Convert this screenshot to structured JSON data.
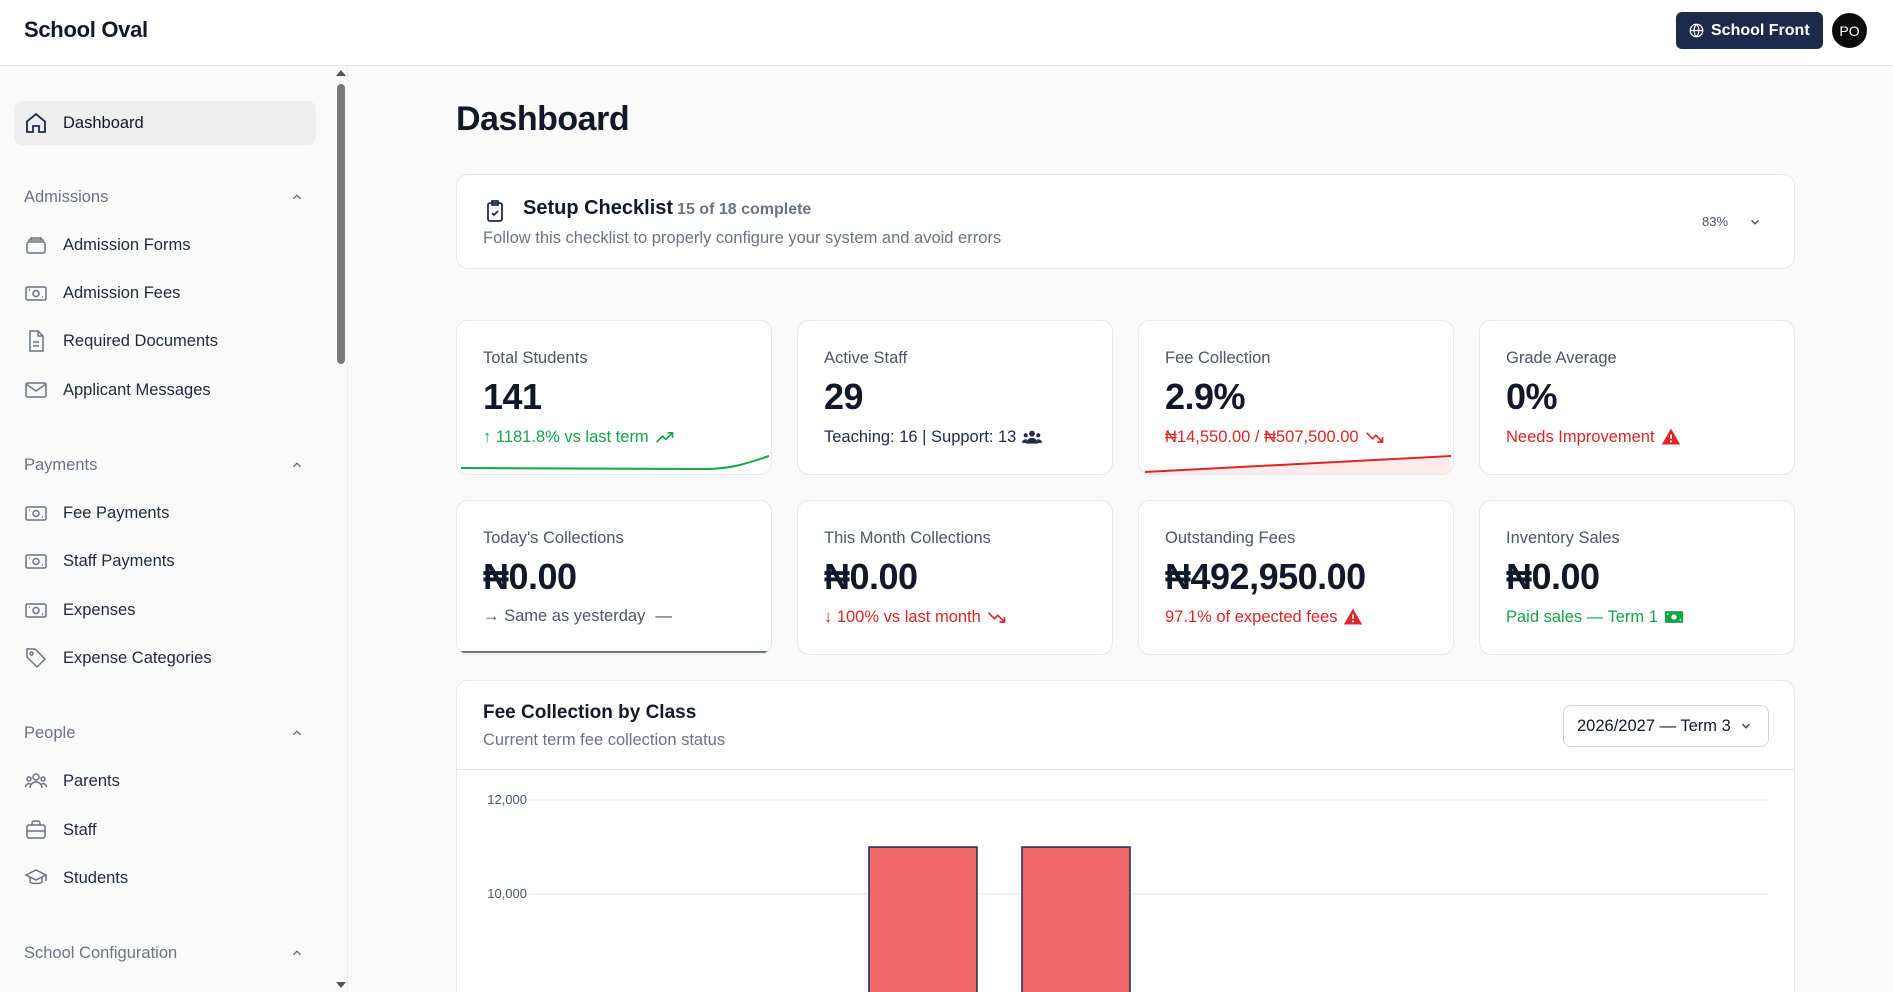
{
  "header": {
    "brand": "School Oval",
    "front_button": "School Front",
    "avatar_initials": "PO"
  },
  "sidebar": {
    "dashboard": "Dashboard",
    "groups": {
      "admissions": {
        "label": "Admissions",
        "items": [
          "Admission Forms",
          "Admission Fees",
          "Required Documents",
          "Applicant Messages"
        ]
      },
      "payments": {
        "label": "Payments",
        "items": [
          "Fee Payments",
          "Staff Payments",
          "Expenses",
          "Expense Categories"
        ]
      },
      "people": {
        "label": "People",
        "items": [
          "Parents",
          "Staff",
          "Students"
        ]
      },
      "config": {
        "label": "School Configuration"
      }
    }
  },
  "main": {
    "title": "Dashboard",
    "checklist": {
      "title": "Setup Checklist",
      "count": "15 of 18 complete",
      "subtitle": "Follow this checklist to properly configure your system and avoid errors",
      "percent": "83%"
    },
    "stats": [
      {
        "label": "Total Students",
        "value": "141",
        "sub": "↑ 1181.8% vs last term"
      },
      {
        "label": "Active Staff",
        "value": "29",
        "sub": "Teaching: 16 | Support: 13"
      },
      {
        "label": "Fee Collection",
        "value": "2.9%",
        "sub": "₦14,550.00 / ₦507,500.00"
      },
      {
        "label": "Grade Average",
        "value": "0%",
        "sub": "Needs Improvement"
      },
      {
        "label": "Today's Collections",
        "value": "₦0.00",
        "sub": "→ Same as yesterday",
        "sub_dash": "—"
      },
      {
        "label": "This Month Collections",
        "value": "₦0.00",
        "sub": "↓ 100% vs last month"
      },
      {
        "label": "Outstanding Fees",
        "value": "₦492,950.00",
        "sub": "97.1% of expected fees"
      },
      {
        "label": "Inventory Sales",
        "value": "₦0.00",
        "sub": "Paid sales — Term 1"
      }
    ],
    "fee_chart": {
      "title": "Fee Collection by Class",
      "subtitle": "Current term fee collection status",
      "term": "2026/2027 — Term 3"
    }
  },
  "colors": {
    "accent": "#1e2a4a",
    "positive": "#16a34a",
    "negative": "#dc2626",
    "bar_fill": "#f0686a",
    "bar_stroke": "#1e2a4a"
  },
  "chart_data": {
    "type": "bar",
    "y_tick_labels": [
      "12,000",
      "10,000"
    ],
    "values": [
      11000,
      11000
    ],
    "ylim": [
      0,
      12000
    ]
  }
}
